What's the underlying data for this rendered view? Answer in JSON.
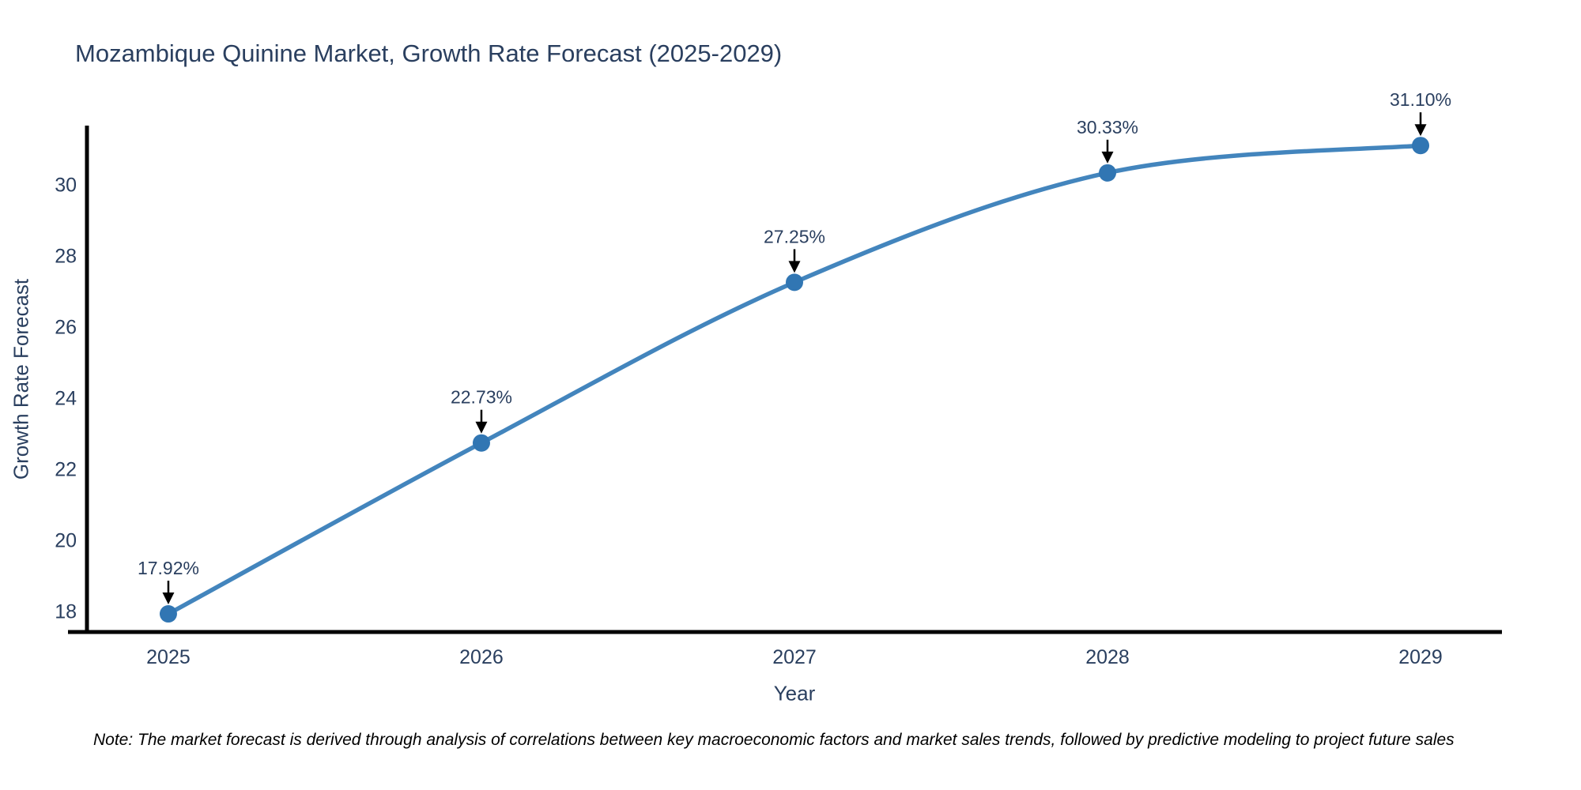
{
  "page": {
    "background": "#ffffff"
  },
  "chart_data": {
    "type": "line",
    "title": "Mozambique Quinine Market, Growth Rate Forecast (2025-2029)",
    "xlabel": "Year",
    "ylabel": "Growth Rate Forecast",
    "x": [
      2025,
      2026,
      2027,
      2028,
      2029
    ],
    "series": [
      {
        "name": "Growth Rate Forecast",
        "values": [
          17.92,
          22.73,
          27.25,
          30.33,
          31.1
        ],
        "point_labels": [
          "17.92%",
          "22.73%",
          "27.25%",
          "30.33%",
          "31.10%"
        ]
      }
    ],
    "x_tick_labels": [
      "2025",
      "2026",
      "2027",
      "2028",
      "2029"
    ],
    "y_tick_values": [
      18,
      20,
      22,
      24,
      26,
      28,
      30
    ],
    "xlim": [
      2024.74,
      2029.26
    ],
    "ylim": [
      17.41,
      31.66
    ],
    "grid": false,
    "legend_position": "none",
    "line_shape": "spline",
    "annotation_style": "value-above-with-down-arrow",
    "colors": {
      "line": "#4385bd",
      "marker": "#3176b3",
      "arrow": "#000000",
      "axis": "#000000",
      "title": "#2a3f5f",
      "tick_label": "#2a3f5f",
      "axis_label": "#2a3f5f",
      "annotation_text": "#2a3f5f",
      "footnote_text": "#000000",
      "background": "#ffffff"
    }
  },
  "footnote": {
    "text": "Note: The market forecast is derived through analysis of correlations between key macroeconomic factors and market sales trends, followed by predictive modeling to project future sales"
  }
}
